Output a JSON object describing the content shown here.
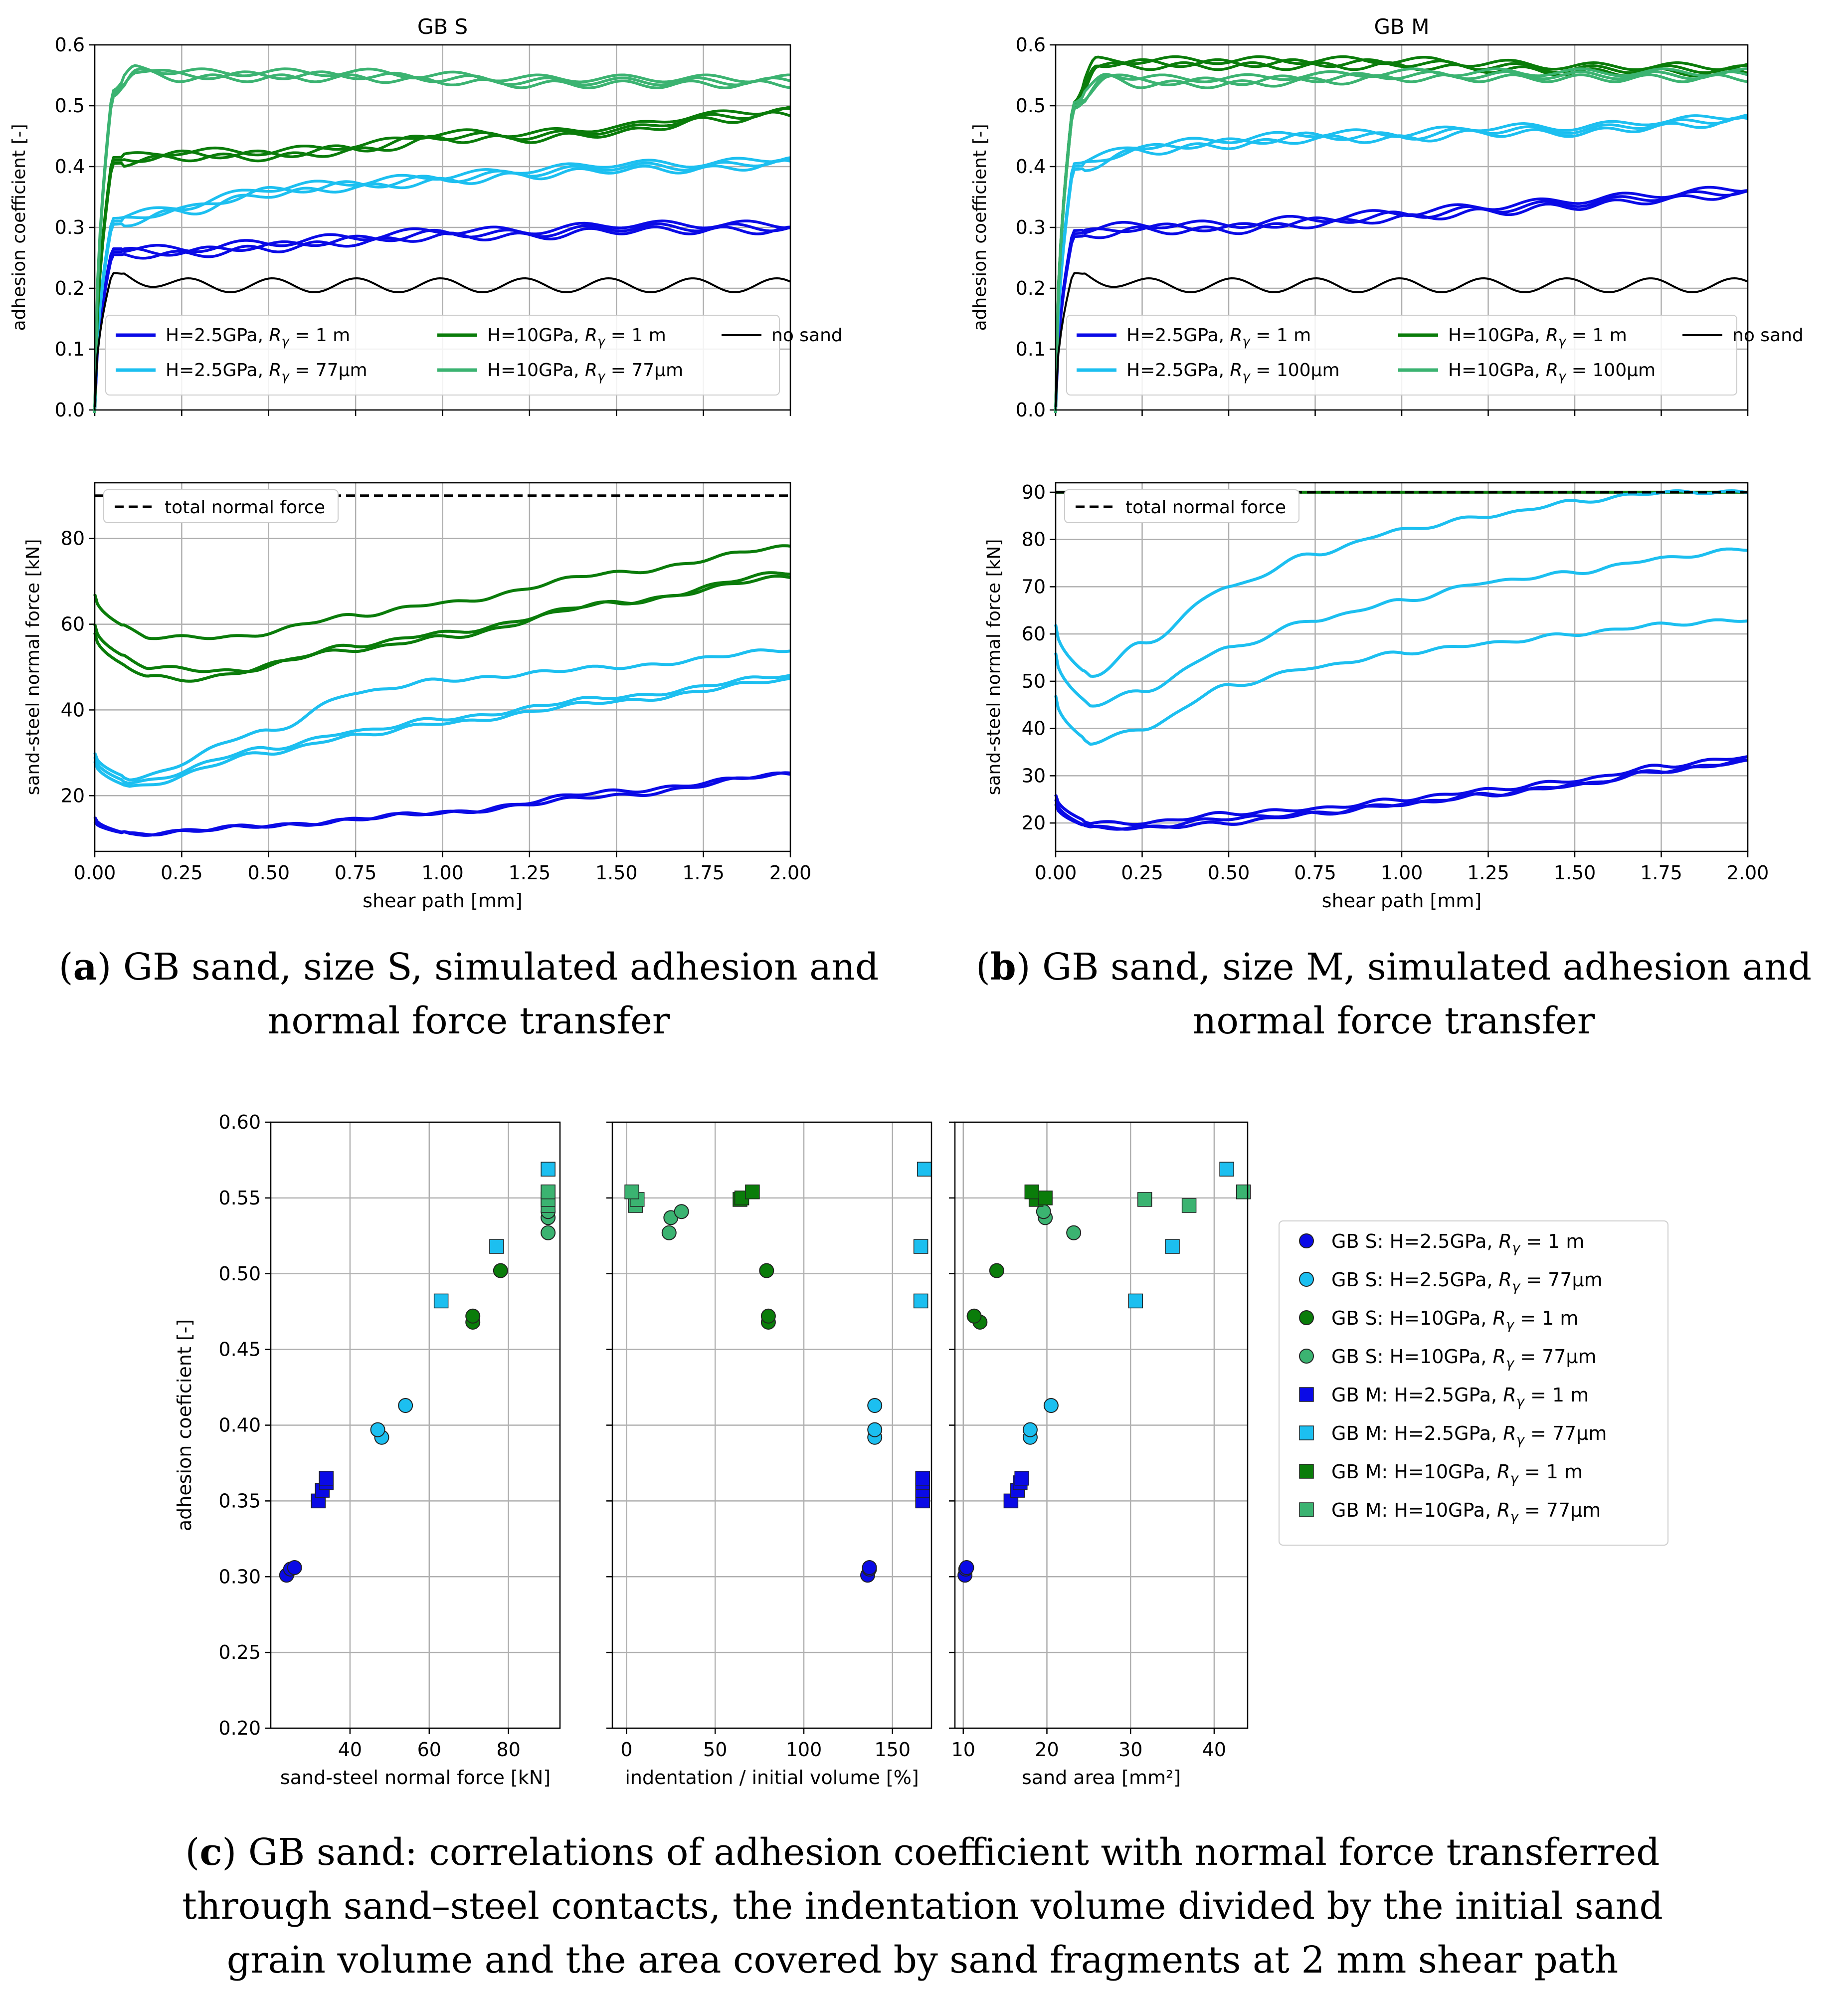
{
  "captions": {
    "a_letter": "a",
    "a_text": "GB sand, size S, simulated adhesion and normal force transfer",
    "b_letter": "b",
    "b_text": "GB sand, size M, simulated adhesion and normal force transfer",
    "c_letter": "c",
    "c_text": "GB sand: correlations of adhesion coefficient with normal force transferred through sand–steel contacts, the indentation volume divided by the initial sand grain volume and the area covered by sand fragments at 2 mm shear path"
  },
  "colors": {
    "blue": "#0a0ae6",
    "cyan": "#1cbff0",
    "green": "#0a7c0a",
    "seagreen": "#3bb371",
    "black": "#000000",
    "grid": "#b0b0b0"
  },
  "chart_data": [
    {
      "id": "a-adhesion",
      "type": "line",
      "title": "GB S",
      "xlabel": "",
      "ylabel": "adhesion coefficient [-]",
      "xlim": [
        0,
        2.0
      ],
      "ylim": [
        0,
        0.6
      ],
      "yticks": [
        "0.0",
        "0.1",
        "0.2",
        "0.3",
        "0.4",
        "0.5",
        "0.6"
      ],
      "grid": true,
      "legend": {
        "placement": "lower",
        "entries": [
          "H=2.5GPa, Rγ = 1 m",
          "H=2.5GPa, Rγ = 77μm",
          "H=10GPa, Rγ = 1 m",
          "H=10GPa, Rγ = 77μm",
          "no sand"
        ]
      },
      "series": [
        {
          "name": "H=2.5GPa, Rγ = 1 m",
          "color": "blue",
          "x": [
            0,
            0.05,
            0.25,
            0.5,
            0.75,
            1.0,
            1.25,
            1.5,
            1.75,
            2.0
          ],
          "y": [
            0.0,
            0.26,
            0.26,
            0.27,
            0.28,
            0.29,
            0.29,
            0.3,
            0.3,
            0.3
          ]
        },
        {
          "name": "H=2.5GPa, Rγ = 77μm",
          "color": "cyan",
          "x": [
            0,
            0.05,
            0.25,
            0.5,
            0.75,
            1.0,
            1.25,
            1.5,
            1.75,
            2.0
          ],
          "y": [
            0.0,
            0.31,
            0.33,
            0.36,
            0.37,
            0.38,
            0.39,
            0.4,
            0.4,
            0.41
          ]
        },
        {
          "name": "H=10GPa, Rγ = 1 m",
          "color": "green",
          "x": [
            0,
            0.05,
            0.25,
            0.5,
            0.75,
            1.0,
            1.25,
            1.5,
            1.75,
            2.0
          ],
          "y": [
            0.0,
            0.41,
            0.42,
            0.42,
            0.43,
            0.45,
            0.45,
            0.46,
            0.48,
            0.49
          ]
        },
        {
          "name": "H=10GPa, Rγ = 77μm",
          "color": "seagreen",
          "x": [
            0,
            0.05,
            0.12,
            0.25,
            0.5,
            0.75,
            1.0,
            1.25,
            1.5,
            1.75,
            2.0
          ],
          "y": [
            0.0,
            0.52,
            0.56,
            0.55,
            0.55,
            0.55,
            0.545,
            0.54,
            0.54,
            0.54,
            0.54
          ]
        },
        {
          "name": "no sand",
          "color": "black",
          "x": [
            0,
            0.05,
            0.25,
            0.5,
            0.75,
            1.0,
            1.25,
            1.5,
            1.75,
            2.0
          ],
          "y": [
            0.0,
            0.22,
            0.2,
            0.2,
            0.2,
            0.2,
            0.2,
            0.2,
            0.2,
            0.2
          ]
        }
      ]
    },
    {
      "id": "a-force",
      "type": "line",
      "xlabel": "shear path [mm]",
      "ylabel": "sand-steel normal force [kN]",
      "xlim": [
        0,
        2.0
      ],
      "ylim": [
        7,
        93
      ],
      "xticks": [
        "0.00",
        "0.25",
        "0.50",
        "0.75",
        "1.00",
        "1.25",
        "1.50",
        "1.75",
        "2.00"
      ],
      "yticks": [
        "20",
        "40",
        "60",
        "80"
      ],
      "grid": true,
      "legend": {
        "placement": "upper left",
        "entries": [
          "total normal force"
        ]
      },
      "series": [
        {
          "name": "total normal force",
          "color": "black",
          "dashed": true,
          "x": [
            0,
            2.0
          ],
          "y": [
            90,
            90
          ]
        },
        {
          "color": "green",
          "x": [
            0,
            0.15,
            0.4,
            0.75,
            1.0,
            1.5,
            2.0
          ],
          "y": [
            67,
            57,
            57,
            62,
            65,
            72,
            78
          ]
        },
        {
          "color": "green",
          "x": [
            0,
            0.15,
            0.4,
            0.75,
            1.0,
            1.5,
            2.0
          ],
          "y": [
            60,
            50,
            49,
            55,
            58,
            65,
            71
          ]
        },
        {
          "color": "green",
          "x": [
            0,
            0.15,
            0.25,
            0.75,
            1.0,
            1.5,
            2.0
          ],
          "y": [
            58,
            48,
            47,
            54,
            57,
            65,
            72
          ]
        },
        {
          "color": "cyan",
          "x": [
            0,
            0.1,
            0.5,
            0.75,
            1.0,
            1.5,
            2.0
          ],
          "y": [
            30,
            24,
            35,
            44,
            47,
            50,
            54
          ]
        },
        {
          "color": "cyan",
          "x": [
            0,
            0.1,
            0.5,
            0.75,
            1.0,
            1.5,
            2.0
          ],
          "y": [
            29,
            23,
            31,
            35,
            38,
            43,
            48
          ]
        },
        {
          "color": "cyan",
          "x": [
            0,
            0.1,
            0.5,
            0.75,
            1.0,
            1.5,
            2.0
          ],
          "y": [
            28,
            22,
            30,
            34,
            37,
            42,
            47
          ]
        },
        {
          "color": "blue",
          "x": [
            0,
            0.1,
            0.5,
            1.0,
            1.5,
            2.0
          ],
          "y": [
            15,
            11,
            13,
            16,
            20,
            25
          ]
        },
        {
          "color": "blue",
          "x": [
            0,
            0.1,
            0.5,
            1.0,
            1.5,
            2.0
          ],
          "y": [
            14,
            11,
            13,
            16,
            21,
            25
          ]
        }
      ]
    },
    {
      "id": "b-adhesion",
      "type": "line",
      "title": "GB M",
      "xlabel": "",
      "ylabel": "adhesion coefficient [-]",
      "xlim": [
        0,
        2.0
      ],
      "ylim": [
        0,
        0.6
      ],
      "yticks": [
        "0.0",
        "0.1",
        "0.2",
        "0.3",
        "0.4",
        "0.5",
        "0.6"
      ],
      "grid": true,
      "legend": {
        "placement": "lower",
        "entries": [
          "H=2.5GPa, Rγ = 1 m",
          "H=2.5GPa, Rγ = 100μm",
          "H=10GPa, Rγ = 1 m",
          "H=10GPa, Rγ = 100μm",
          "no sand"
        ]
      },
      "series": [
        {
          "name": "H=2.5GPa, Rγ = 1 m",
          "color": "blue",
          "x": [
            0,
            0.05,
            0.25,
            0.5,
            0.75,
            1.0,
            1.25,
            1.5,
            1.75,
            2.0
          ],
          "y": [
            0.0,
            0.29,
            0.3,
            0.3,
            0.31,
            0.32,
            0.33,
            0.34,
            0.35,
            0.36
          ]
        },
        {
          "name": "H=2.5GPa, Rγ = 100μm",
          "color": "cyan",
          "x": [
            0,
            0.05,
            0.25,
            0.5,
            0.75,
            1.0,
            1.25,
            1.5,
            1.75,
            2.0
          ],
          "y": [
            0.0,
            0.4,
            0.43,
            0.44,
            0.45,
            0.45,
            0.46,
            0.46,
            0.47,
            0.48
          ]
        },
        {
          "name": "H=10GPa, Rγ = 1 m",
          "color": "green",
          "x": [
            0,
            0.05,
            0.12,
            0.25,
            0.5,
            0.75,
            1.0,
            1.25,
            1.5,
            1.75,
            2.0
          ],
          "y": [
            0.0,
            0.5,
            0.57,
            0.57,
            0.57,
            0.57,
            0.57,
            0.565,
            0.56,
            0.56,
            0.56
          ]
        },
        {
          "name": "H=10GPa, Rγ = 100μm",
          "color": "seagreen",
          "x": [
            0,
            0.05,
            0.15,
            0.25,
            0.5,
            0.75,
            1.0,
            1.25,
            1.5,
            1.75,
            2.0
          ],
          "y": [
            0.0,
            0.5,
            0.55,
            0.54,
            0.54,
            0.545,
            0.55,
            0.55,
            0.55,
            0.55,
            0.55
          ]
        },
        {
          "name": "no sand",
          "color": "black",
          "x": [
            0,
            0.05,
            0.25,
            0.5,
            0.75,
            1.0,
            1.25,
            1.5,
            1.75,
            2.0
          ],
          "y": [
            0.0,
            0.22,
            0.2,
            0.2,
            0.2,
            0.2,
            0.2,
            0.2,
            0.2,
            0.2
          ]
        }
      ]
    },
    {
      "id": "b-force",
      "type": "line",
      "xlabel": "shear path [mm]",
      "ylabel": "sand-steel normal force [kN]",
      "xlim": [
        0,
        2.0
      ],
      "ylim": [
        14,
        92
      ],
      "xticks": [
        "0.00",
        "0.25",
        "0.50",
        "0.75",
        "1.00",
        "1.25",
        "1.50",
        "1.75",
        "2.00"
      ],
      "yticks": [
        "20",
        "30",
        "40",
        "50",
        "60",
        "70",
        "80",
        "90"
      ],
      "grid": true,
      "legend": {
        "placement": "upper left",
        "entries": [
          "total normal force"
        ]
      },
      "series": [
        {
          "name": "total normal force",
          "color": "black",
          "dashed": true,
          "x": [
            0,
            2.0
          ],
          "y": [
            90,
            90
          ]
        },
        {
          "color": "green",
          "x": [
            0,
            2.0
          ],
          "y": [
            90,
            90
          ]
        },
        {
          "color": "cyan",
          "x": [
            0,
            0.1,
            0.25,
            0.5,
            0.75,
            1.0,
            1.25,
            1.5,
            1.75,
            2.0
          ],
          "y": [
            62,
            51,
            58,
            70,
            77,
            82,
            85,
            88,
            90,
            90
          ]
        },
        {
          "color": "cyan",
          "x": [
            0,
            0.1,
            0.25,
            0.5,
            0.75,
            1.0,
            1.25,
            1.5,
            1.75,
            2.0
          ],
          "y": [
            56,
            45,
            48,
            57,
            63,
            67,
            71,
            73,
            76,
            78
          ]
        },
        {
          "color": "cyan",
          "x": [
            0,
            0.1,
            0.25,
            0.5,
            0.75,
            1.0,
            1.25,
            1.5,
            1.75,
            2.0
          ],
          "y": [
            47,
            37,
            40,
            49,
            53,
            56,
            58,
            60,
            62,
            63
          ]
        },
        {
          "color": "blue",
          "x": [
            0,
            0.1,
            0.25,
            0.5,
            0.75,
            1.0,
            1.25,
            1.5,
            1.75,
            2.0
          ],
          "y": [
            26,
            20,
            20,
            22,
            23,
            25,
            27,
            29,
            32,
            34
          ]
        },
        {
          "color": "blue",
          "x": [
            0,
            0.1,
            0.25,
            0.5,
            0.75,
            1.0,
            1.25,
            1.5,
            1.75,
            2.0
          ],
          "y": [
            25,
            19,
            19,
            20,
            22,
            24,
            26,
            28,
            31,
            33
          ]
        },
        {
          "color": "blue",
          "x": [
            0,
            0.1,
            0.25,
            0.5,
            0.75,
            1.0,
            1.25,
            1.5,
            1.75,
            2.0
          ],
          "y": [
            24,
            19,
            19,
            21,
            22,
            24,
            26,
            28,
            31,
            33
          ]
        }
      ]
    },
    {
      "id": "c-scatter",
      "type": "scatter",
      "ylabel": "adhesion coeficient [-]",
      "ylim": [
        0.2,
        0.6
      ],
      "yticks": [
        "0.20",
        "0.25",
        "0.30",
        "0.35",
        "0.40",
        "0.45",
        "0.50",
        "0.55",
        "0.60"
      ],
      "grid": true,
      "subplots": [
        {
          "xlabel": "sand-steel normal force [kN]",
          "xlim": [
            20,
            93
          ],
          "xticks": [
            "40",
            "60",
            "80"
          ]
        },
        {
          "xlabel": "indentation / initial volume [%]",
          "xlim": [
            -8,
            172
          ],
          "xticks": [
            "0",
            "50",
            "100",
            "150"
          ]
        },
        {
          "xlabel": "sand area [mm²]",
          "xlim": [
            9,
            44
          ],
          "xticks": [
            "10",
            "20",
            "30",
            "40"
          ]
        }
      ],
      "legend": {
        "placement": "right",
        "entries": [
          "GB S: H=2.5GPa, Rγ = 1 m",
          "GB S: H=2.5GPa, Rγ = 77μm",
          "GB S: H=10GPa, Rγ = 1 m",
          "GB S: H=10GPa, Rγ = 77μm",
          "GB M: H=2.5GPa, Rγ = 1 m",
          "GB M: H=2.5GPa, Rγ = 77μm",
          "GB M: H=10GPa, Rγ = 1 m",
          "GB M: H=10GPa, Rγ = 77μm"
        ]
      },
      "series": [
        {
          "name": "GB S: H=2.5GPa, Rγ = 1 m",
          "marker": "circle",
          "color": "blue",
          "y": [
            0.301,
            0.305,
            0.306
          ],
          "x_force": [
            24,
            25,
            26
          ],
          "x_indent": [
            136,
            137,
            137
          ],
          "x_area": [
            10.2,
            10.3,
            10.4
          ]
        },
        {
          "name": "GB S: H=2.5GPa, Rγ = 77μm",
          "marker": "circle",
          "color": "cyan",
          "y": [
            0.392,
            0.397,
            0.413
          ],
          "x_force": [
            48,
            47,
            54
          ],
          "x_indent": [
            140,
            140,
            140
          ],
          "x_area": [
            18,
            18,
            20.5
          ]
        },
        {
          "name": "GB S: H=10GPa, Rγ = 1 m",
          "marker": "circle",
          "color": "green",
          "y": [
            0.468,
            0.472,
            0.502
          ],
          "x_force": [
            71,
            71,
            78
          ],
          "x_indent": [
            80,
            80,
            79
          ],
          "x_area": [
            12,
            11.3,
            14
          ]
        },
        {
          "name": "GB S: H=10GPa, Rγ = 77μm",
          "marker": "circle",
          "color": "seagreen",
          "y": [
            0.527,
            0.537,
            0.541
          ],
          "x_force": [
            90,
            90,
            90
          ],
          "x_indent": [
            24,
            25,
            31
          ],
          "x_area": [
            23.2,
            19.8,
            19.6
          ]
        },
        {
          "name": "GB M: H=2.5GPa, Rγ = 1 m",
          "marker": "square",
          "color": "blue",
          "y": [
            0.35,
            0.357,
            0.362,
            0.365
          ],
          "x_force": [
            32,
            33,
            34,
            34
          ],
          "x_indent": [
            167,
            167,
            167,
            167
          ],
          "x_area": [
            15.7,
            16.5,
            16.8,
            17
          ]
        },
        {
          "name": "GB M: H=2.5GPa, Rγ = 77μm",
          "marker": "square",
          "color": "cyan",
          "y": [
            0.482,
            0.518,
            0.569
          ],
          "x_force": [
            63,
            77,
            90
          ],
          "x_indent": [
            166,
            166,
            168
          ],
          "x_area": [
            30.6,
            35,
            41.5
          ]
        },
        {
          "name": "GB M: H=10GPa, Rγ = 1 m",
          "marker": "square",
          "color": "green",
          "y": [
            0.549,
            0.55,
            0.554
          ],
          "x_force": [
            90,
            90,
            90
          ],
          "x_indent": [
            64,
            65,
            71
          ],
          "x_area": [
            18.7,
            19.8,
            18.2
          ]
        },
        {
          "name": "GB M: H=10GPa, Rγ = 77μm",
          "marker": "square",
          "color": "seagreen",
          "y": [
            0.545,
            0.549,
            0.554
          ],
          "x_force": [
            90,
            90,
            90
          ],
          "x_indent": [
            5,
            6,
            3
          ],
          "x_area": [
            37,
            31.7,
            43.5
          ]
        }
      ]
    }
  ]
}
